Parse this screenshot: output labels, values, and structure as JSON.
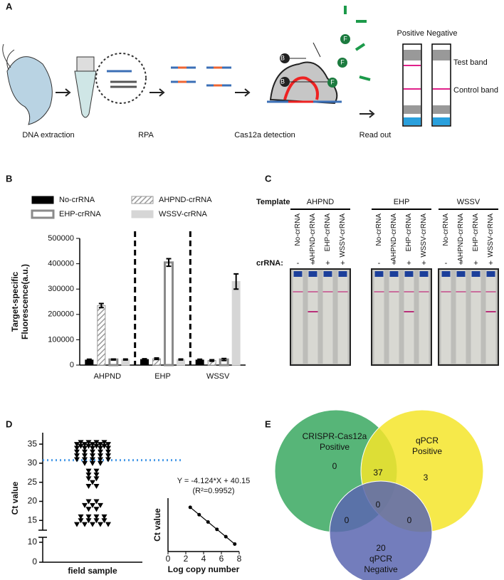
{
  "panel_labels": [
    "A",
    "B",
    "C",
    "D",
    "E"
  ],
  "workflow": {
    "steps": [
      "DNA extraction",
      "RPA",
      "Cas12a detection",
      "Read out"
    ],
    "strip_header": "Positive Negative",
    "bands": [
      "Test band",
      "Control band"
    ],
    "icons": [
      "B",
      "F"
    ]
  },
  "chart_data": [
    {
      "type": "bar",
      "ylabel": [
        "Target-specific",
        "Fluorescence(a.u.)"
      ],
      "categories": [
        "AHPND",
        "EHP",
        "WSSV"
      ],
      "series": [
        {
          "name": "No-crRNA",
          "color": "#000000",
          "fill": "solid",
          "values": [
            20000,
            22000,
            20000
          ],
          "errors": [
            3000,
            3000,
            3000
          ]
        },
        {
          "name": "AHPND-crRNA",
          "color": "#9a9a9a",
          "fill": "hatched",
          "values": [
            235000,
            25000,
            18000
          ],
          "errors": [
            8000,
            3000,
            3000
          ]
        },
        {
          "name": "EHP-crRNA",
          "color": "#8a8a8a",
          "fill": "open",
          "values": [
            22000,
            405000,
            22000
          ],
          "errors": [
            2000,
            15000,
            4000
          ]
        },
        {
          "name": "WSSV-crRNA",
          "color": "#d6d6d6",
          "fill": "solid",
          "values": [
            22000,
            22000,
            330000
          ],
          "errors": [
            2000,
            2000,
            30000
          ]
        }
      ],
      "ylim": [
        0,
        500000
      ],
      "yticks": [
        0,
        100000,
        200000,
        300000,
        400000,
        500000
      ]
    },
    {
      "type": "scatter",
      "ylabel": "Ct value",
      "categories": [
        "field sample"
      ],
      "values": [
        35.5,
        35.5,
        35.5,
        35.5,
        35,
        35,
        35,
        35,
        35,
        34.5,
        34.5,
        34.5,
        34.5,
        34,
        34,
        34,
        34,
        34,
        33,
        33,
        33,
        33,
        33,
        32,
        32,
        32,
        32,
        32,
        31,
        31,
        31,
        31,
        31,
        30,
        30,
        30,
        28,
        28,
        27,
        27,
        26,
        26,
        25,
        24,
        24,
        20,
        20,
        19,
        19,
        19,
        18,
        18,
        16,
        16,
        16,
        16,
        15,
        15,
        15,
        15,
        14,
        14,
        14,
        14,
        14
      ],
      "threshold": 30.8,
      "threshold_color": "#4a9be8",
      "color": "#000000",
      "ylim": [
        0,
        38
      ],
      "ybreak": [
        10,
        13
      ],
      "yticks": [
        0,
        10,
        15,
        20,
        25,
        30,
        35
      ]
    },
    {
      "type": "line",
      "ylabel": "Ct value",
      "xlabel": "Log copy number",
      "annotations": [
        "Y = -4.124*X + 40.15",
        "(R²=0.9952)"
      ],
      "x": [
        2.5,
        3.5,
        4.5,
        5.5,
        6.5,
        7.5
      ],
      "y": [
        29.84,
        25.72,
        21.59,
        17.47,
        13.34,
        9.22
      ],
      "color": "#000000",
      "xlim": [
        0,
        8
      ],
      "xticks": [
        0,
        2,
        4,
        6,
        8
      ],
      "ylim": [
        5,
        35
      ]
    }
  ],
  "strip_test": {
    "template_label": "Template",
    "crrna_label": "crRNA:",
    "groups": [
      {
        "name": "AHPND",
        "lanes": [
          "No-crRNA",
          "AHPND-crRNA",
          "EHP-crRNA",
          "WSSV-crRNA"
        ],
        "signs": [
          "-",
          "+",
          "+",
          "+"
        ]
      },
      {
        "name": "EHP",
        "lanes": [
          "No-crRNA",
          "AHPND-crRNA",
          "EHP-crRNA",
          "WSSV-crRNA"
        ],
        "signs": [
          "-",
          "+",
          "+",
          "+"
        ]
      },
      {
        "name": "WSSV",
        "lanes": [
          "No-crRNA",
          "AHPND-crRNA",
          "EHP-crRNA",
          "WSSV-crRNA"
        ],
        "signs": [
          "-",
          "+",
          "+",
          "+"
        ]
      }
    ]
  },
  "venn": {
    "sets": [
      {
        "name": [
          "CRISPR-Cas12a",
          "Positive"
        ],
        "color": "#3aa860"
      },
      {
        "name": [
          "qPCR",
          "Positive"
        ],
        "color": "#f5e52a"
      },
      {
        "name": [
          "qPCR",
          "Negative"
        ],
        "color": "#5a66b0"
      }
    ],
    "regions": {
      "a_only": 0,
      "b_only": 3,
      "c_only": 20,
      "ab": 37,
      "ac": 0,
      "bc": 0,
      "abc": 0
    }
  }
}
